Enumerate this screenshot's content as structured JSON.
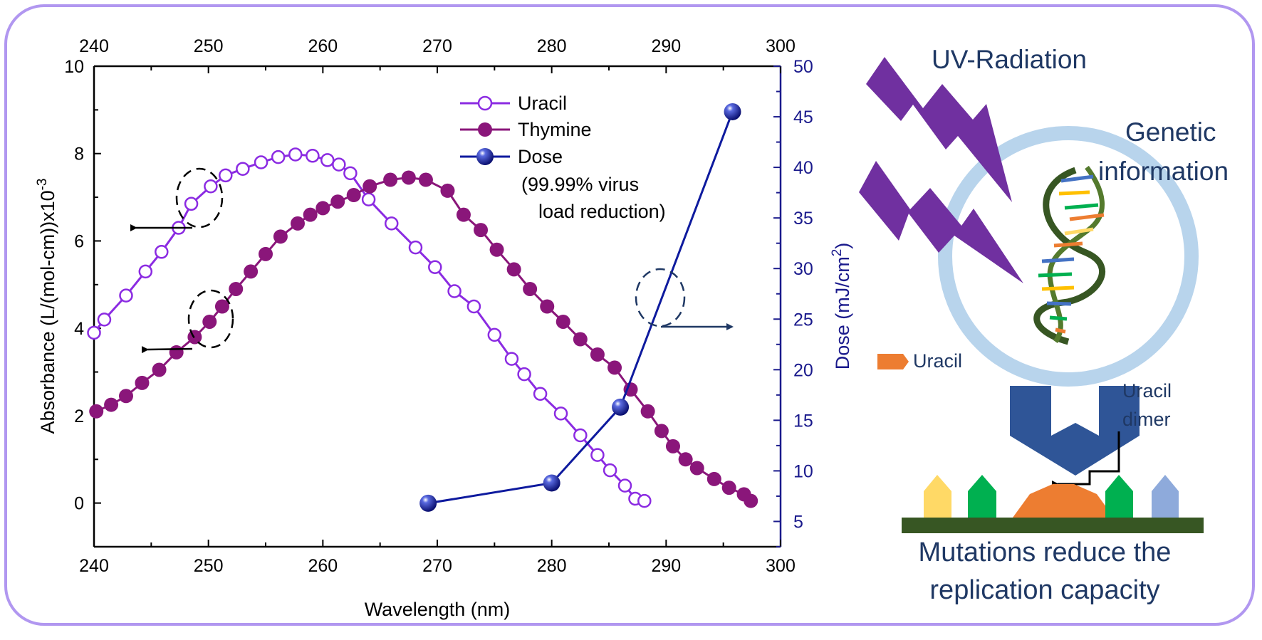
{
  "chart_data": {
    "type": "line",
    "xlabel": "Wavelength (nm)",
    "ylabel_left": "Absorbance (L/(mol-cm))x10",
    "ylabel_left_sup": "-3",
    "ylabel_right": "Dose (mJ/cm",
    "ylabel_right_sup": "2",
    "ylabel_right_end": ")",
    "xlim": [
      240,
      300
    ],
    "ylim_left": [
      -1,
      10
    ],
    "ylim_right": [
      2.5,
      50
    ],
    "xticks": [
      240,
      250,
      260,
      270,
      280,
      290,
      300
    ],
    "xticks_top": [
      240,
      250,
      260,
      270,
      280,
      290,
      300
    ],
    "yticks_left": [
      0,
      2,
      4,
      6,
      8,
      10
    ],
    "yticks_right": [
      5,
      10,
      15,
      20,
      25,
      30,
      35,
      40,
      45,
      50
    ],
    "legend": {
      "position": "top-center",
      "note": "(99.99% virus",
      "note2": "load reduction)"
    },
    "series": [
      {
        "name": "Uracil",
        "axis": "left",
        "color": "#8b2be2",
        "marker": "open-circle",
        "x": [
          240.0,
          240.9,
          242.8,
          244.5,
          245.9,
          247.4,
          248.5,
          250.2,
          251.5,
          253.0,
          254.6,
          256.1,
          257.6,
          259.1,
          260.4,
          261.4,
          262.4,
          264.0,
          266.0,
          268.1,
          269.8,
          271.5,
          273.2,
          275.0,
          276.5,
          277.6,
          279.0,
          280.8,
          282.5,
          284.0,
          285.1,
          286.4,
          287.3,
          288.1
        ],
        "y": [
          3.9,
          4.2,
          4.75,
          5.3,
          5.75,
          6.3,
          6.85,
          7.25,
          7.5,
          7.65,
          7.8,
          7.92,
          7.98,
          7.95,
          7.85,
          7.75,
          7.55,
          6.95,
          6.4,
          5.85,
          5.4,
          4.85,
          4.5,
          3.85,
          3.3,
          2.95,
          2.5,
          2.05,
          1.55,
          1.1,
          0.75,
          0.4,
          0.1,
          0.05
        ]
      },
      {
        "name": "Thymine",
        "axis": "left",
        "color": "#8a167a",
        "marker": "filled-circle",
        "x": [
          240.2,
          241.5,
          242.8,
          244.2,
          245.7,
          247.2,
          248.8,
          250.1,
          251.2,
          252.4,
          253.7,
          255.0,
          256.3,
          257.8,
          258.9,
          260.0,
          261.3,
          262.7,
          264.1,
          265.9,
          267.5,
          269.0,
          270.9,
          272.3,
          273.8,
          275.2,
          276.7,
          278.1,
          279.6,
          281.0,
          282.5,
          284.0,
          285.5,
          286.9,
          288.4,
          289.6,
          290.6,
          291.7,
          292.7,
          294.2,
          295.5,
          296.8,
          297.4
        ],
        "y": [
          2.1,
          2.25,
          2.45,
          2.75,
          3.05,
          3.45,
          3.8,
          4.15,
          4.5,
          4.9,
          5.3,
          5.7,
          6.1,
          6.4,
          6.6,
          6.75,
          6.9,
          7.05,
          7.25,
          7.4,
          7.45,
          7.4,
          7.15,
          6.6,
          6.25,
          5.8,
          5.35,
          4.9,
          4.5,
          4.15,
          3.75,
          3.4,
          3.1,
          2.6,
          2.1,
          1.65,
          1.3,
          1.0,
          0.8,
          0.55,
          0.35,
          0.2,
          0.05
        ]
      },
      {
        "name": "Dose",
        "axis": "right",
        "color": "#0e1a9e",
        "marker": "filled-sphere",
        "x": [
          269.2,
          280.0,
          286.0,
          295.8
        ],
        "y": [
          6.8,
          8.8,
          16.3,
          45.5
        ]
      }
    ]
  },
  "illustration": {
    "uv_label": "UV-Radiation",
    "genetic_label_1": "Genetic",
    "genetic_label_2": "information",
    "uracil_label": "Uracil",
    "dimer_label_1": "Uracil",
    "dimer_label_2": "dimer",
    "mutation_line_1": "Mutations reduce the",
    "mutation_line_2": "replication capacity",
    "colors": {
      "lightning": "#7030a0",
      "ring": "#b8d4ec",
      "chevron": "#2f5597",
      "uracil": "#ed7d31",
      "base_yellow": "#ffd966",
      "base_green": "#00b050",
      "base_blue": "#8eaadb",
      "strand": "#375623",
      "text": "#1f3864"
    }
  }
}
